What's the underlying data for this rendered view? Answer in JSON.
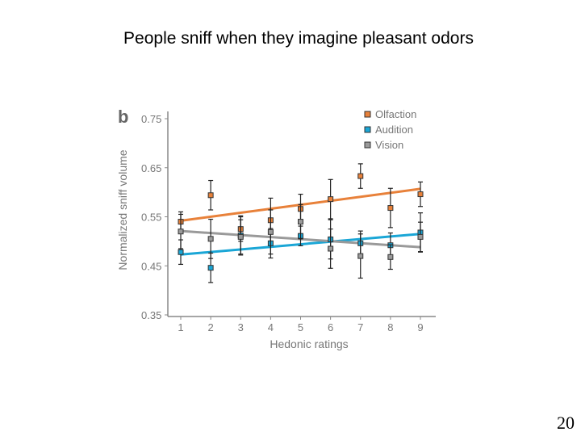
{
  "slide": {
    "title": "People sniff when they imagine pleasant odors",
    "page_number": "20"
  },
  "colors": {
    "olfaction": "#e8813a",
    "audition": "#1aa6d6",
    "vision": "#9a9a9a",
    "axis": "#888888",
    "text": "#777777"
  },
  "chart_data": {
    "type": "scatter",
    "panel_label": "b",
    "title": "",
    "xlabel": "Hedonic ratings",
    "ylabel": "Normalized sniff volume",
    "x_ticks": [
      "1",
      "2",
      "3",
      "4",
      "5",
      "6",
      "7",
      "8",
      "9"
    ],
    "y_ticks": [
      "0.75",
      "0.65",
      "0.55",
      "0.45",
      "0.35"
    ],
    "xlim": [
      0.5,
      9.5
    ],
    "ylim": [
      0.35,
      0.75
    ],
    "legend_position": "top-right",
    "series": [
      {
        "name": "Olfaction",
        "color_key": "olfaction",
        "x": [
          1,
          2,
          3,
          4,
          5,
          6,
          7,
          8,
          9
        ],
        "y": [
          0.54,
          0.594,
          0.525,
          0.543,
          0.566,
          0.586,
          0.633,
          0.568,
          0.596
        ],
        "err": [
          0.02,
          0.03,
          0.025,
          0.045,
          0.03,
          0.04,
          0.025,
          0.04,
          0.025
        ],
        "trend": [
          0.542,
          0.607
        ]
      },
      {
        "name": "Audition",
        "color_key": "audition",
        "x": [
          1,
          2,
          3,
          4,
          5,
          6,
          7,
          8,
          9
        ],
        "y": [
          0.478,
          0.446,
          0.512,
          0.496,
          0.511,
          0.504,
          0.496,
          0.492,
          0.518
        ],
        "err": [
          0.025,
          0.03,
          0.04,
          0.03,
          0.02,
          0.04,
          0.025,
          0.025,
          0.04
        ],
        "trend": [
          0.473,
          0.515
        ]
      },
      {
        "name": "Vision",
        "color_key": "vision",
        "x": [
          1,
          2,
          3,
          4,
          5,
          6,
          7,
          8,
          9
        ],
        "y": [
          0.52,
          0.505,
          0.509,
          0.519,
          0.54,
          0.485,
          0.47,
          0.468,
          0.509
        ],
        "err": [
          0.035,
          0.04,
          0.035,
          0.045,
          0.035,
          0.04,
          0.045,
          0.025,
          0.03
        ],
        "trend": [
          0.521,
          0.488
        ]
      }
    ]
  }
}
